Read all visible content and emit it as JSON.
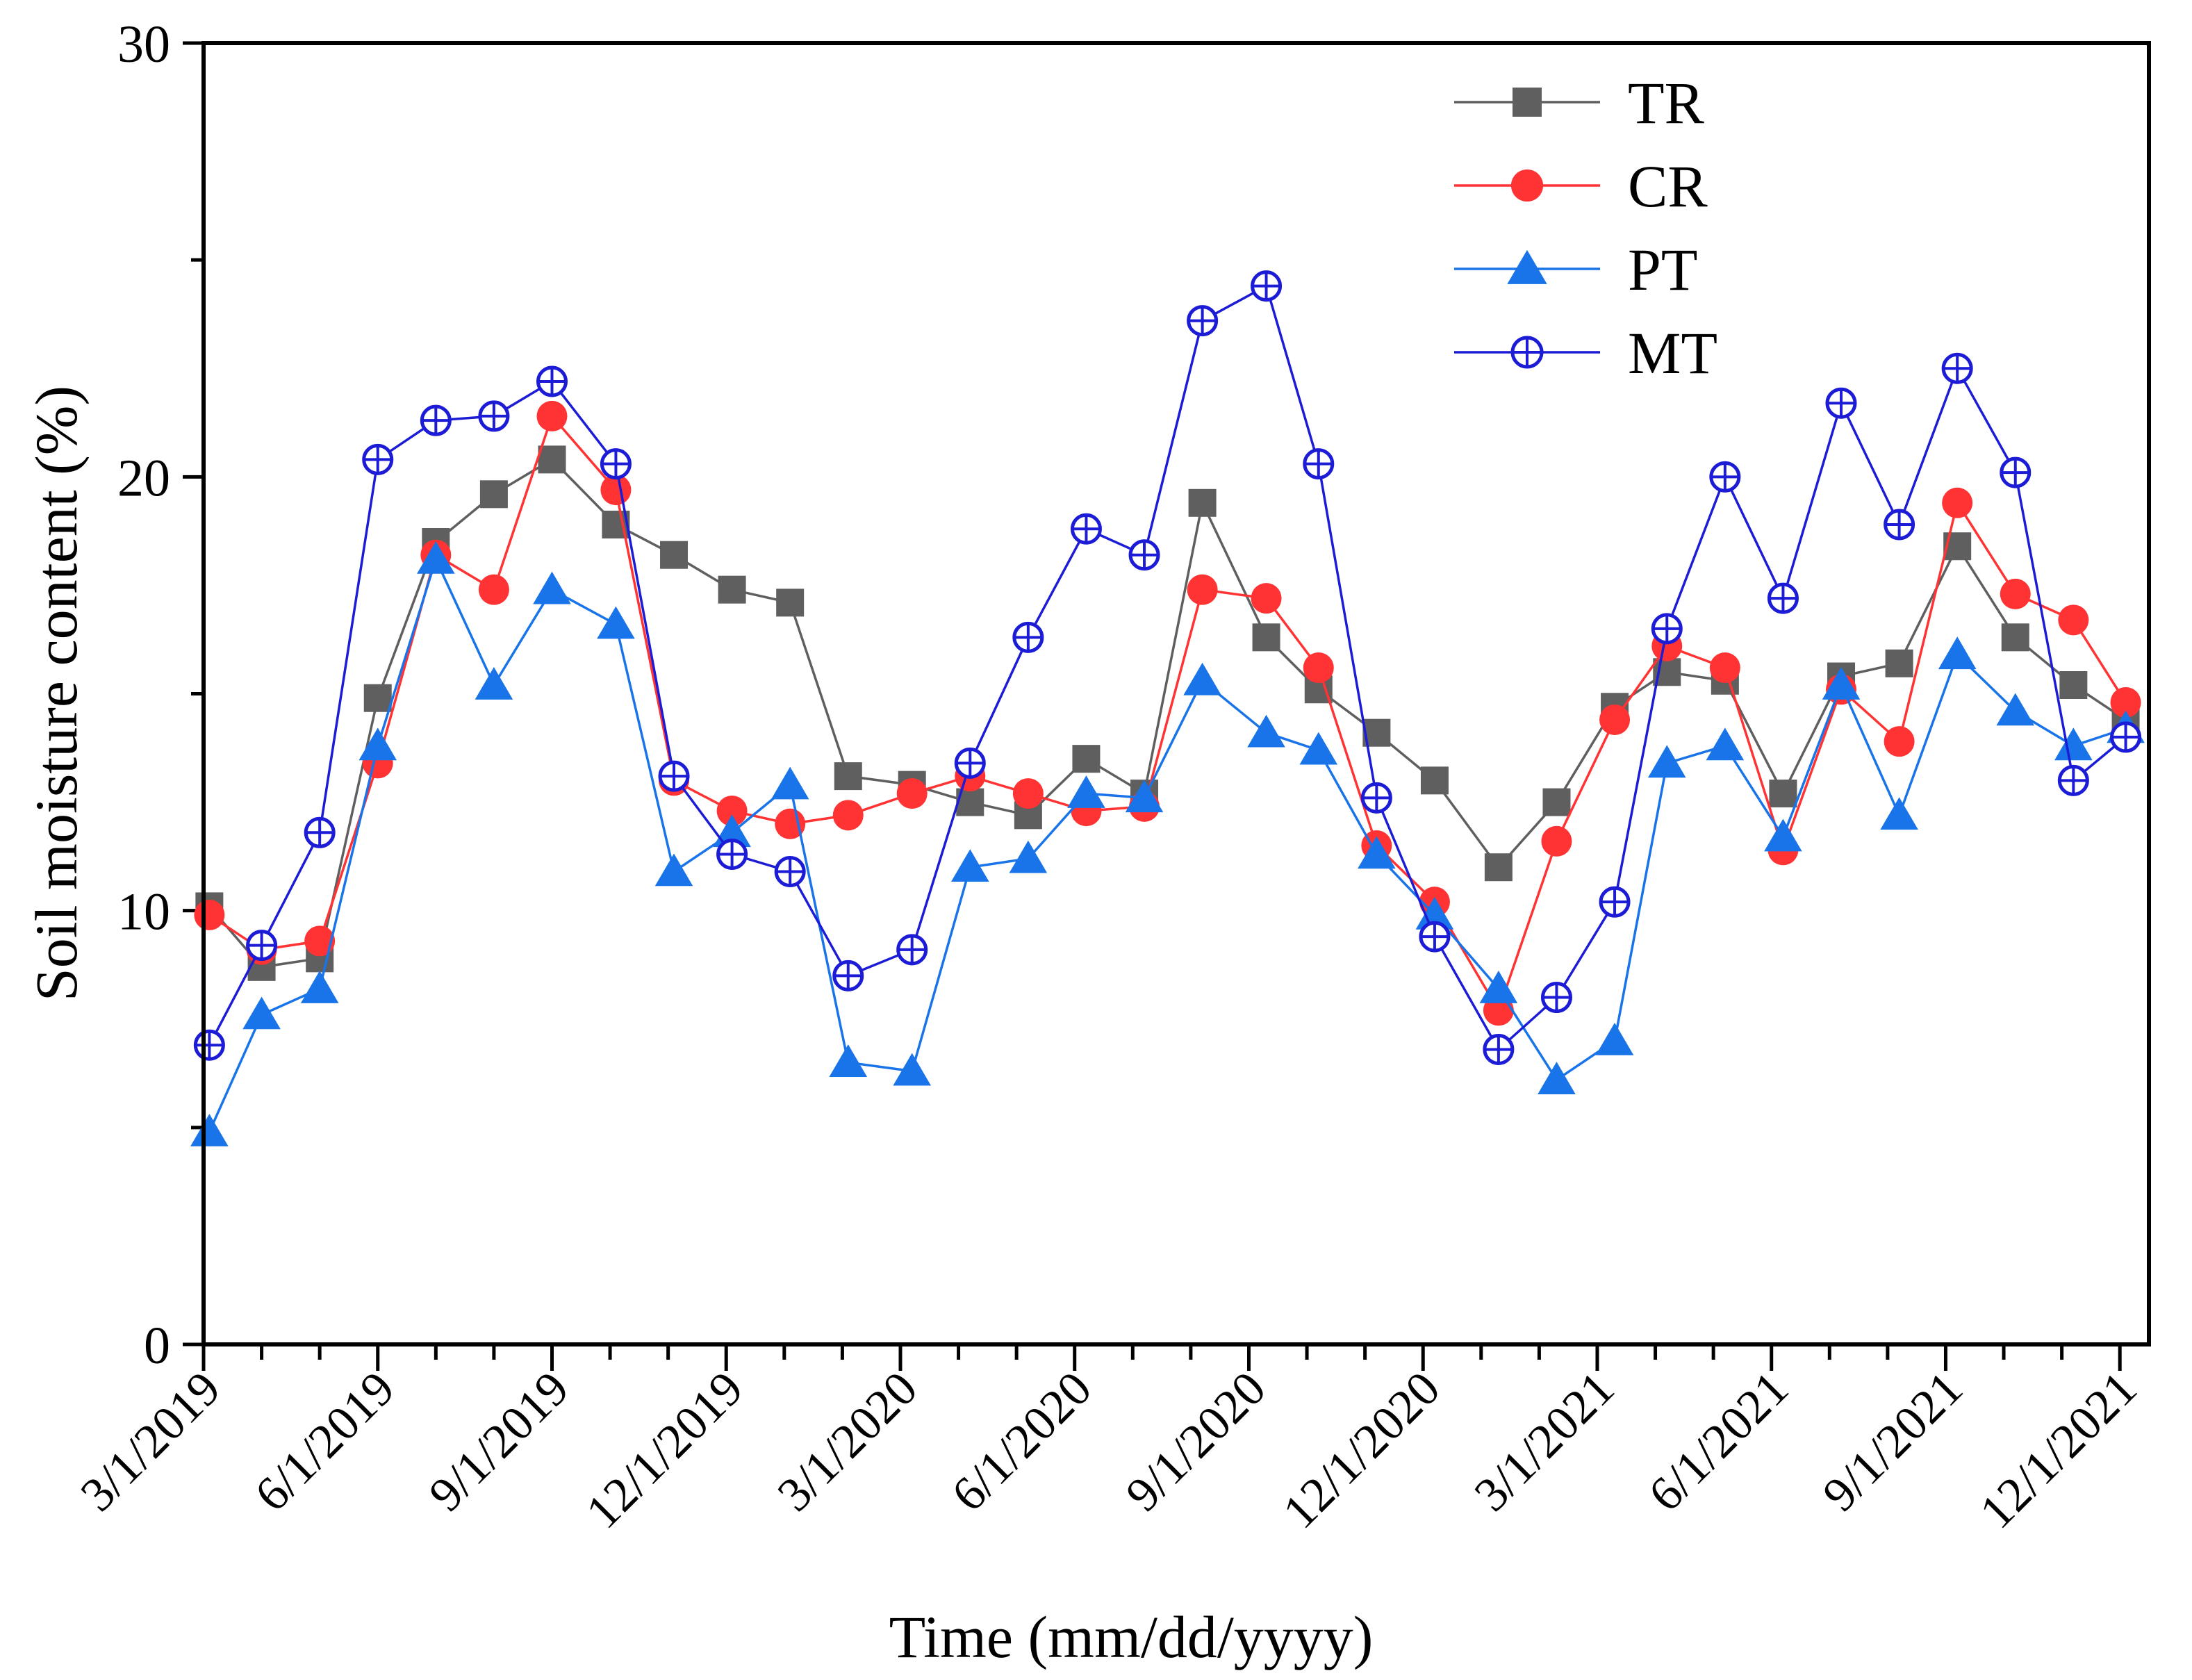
{
  "chart_data": {
    "type": "line",
    "title": "",
    "xlabel": "Time (mm/dd/yyyy)",
    "ylabel": "Soil moisture content (%)",
    "ylim": [
      0,
      30
    ],
    "yticks": [
      0,
      10,
      20,
      30
    ],
    "x_unit": "months since 3/1/2019",
    "xlim": [
      0,
      33.5
    ],
    "xtick_labels": [
      {
        "label": "3/1/2019",
        "x": 0
      },
      {
        "label": "6/1/2019",
        "x": 3
      },
      {
        "label": "9/1/2019",
        "x": 6
      },
      {
        "label": "12/1/2019",
        "x": 9
      },
      {
        "label": "3/1/2020",
        "x": 12
      },
      {
        "label": "6/1/2020",
        "x": 15
      },
      {
        "label": "9/1/2020",
        "x": 18
      },
      {
        "label": "12/1/2020",
        "x": 21
      },
      {
        "label": "3/1/2021",
        "x": 24
      },
      {
        "label": "6/1/2021",
        "x": 27
      },
      {
        "label": "9/1/2021",
        "x": 30
      },
      {
        "label": "12/1/2021",
        "x": 33
      }
    ],
    "x": [
      0.1,
      1.0,
      2.0,
      3.0,
      4.0,
      5.0,
      6.0,
      7.1,
      8.1,
      9.1,
      10.1,
      11.1,
      12.2,
      13.2,
      14.2,
      15.2,
      16.2,
      17.2,
      18.3,
      19.2,
      20.2,
      21.2,
      22.3,
      23.3,
      24.3,
      25.2,
      26.2,
      27.2,
      28.2,
      29.2,
      30.2,
      31.2,
      32.2,
      33.1
    ],
    "legend_position": "top-right",
    "series": [
      {
        "name": "TR",
        "color": "#5f5f5f",
        "marker": "square",
        "values": [
          10.1,
          8.7,
          8.9,
          14.9,
          18.5,
          19.6,
          20.4,
          18.9,
          18.2,
          17.4,
          17.1,
          13.1,
          12.9,
          12.5,
          12.2,
          13.5,
          12.7,
          19.4,
          16.3,
          15.1,
          14.1,
          13.0,
          11.0,
          12.5,
          14.7,
          15.5,
          15.3,
          12.7,
          15.4,
          15.7,
          18.4,
          16.3,
          15.2,
          14.4
        ]
      },
      {
        "name": "CR",
        "color": "#ff3333",
        "marker": "circle",
        "values": [
          9.9,
          9.1,
          9.3,
          13.4,
          18.2,
          17.4,
          21.4,
          19.7,
          13.0,
          12.3,
          12.0,
          12.2,
          12.7,
          13.1,
          12.7,
          12.3,
          12.4,
          17.4,
          17.2,
          15.6,
          11.5,
          10.2,
          7.7,
          11.6,
          14.4,
          16.1,
          15.6,
          11.4,
          15.1,
          13.9,
          19.4,
          17.3,
          16.7,
          14.8
        ]
      },
      {
        "name": "PT",
        "color": "#1874e8",
        "marker": "triangle",
        "values": [
          4.9,
          7.6,
          8.2,
          13.8,
          18.1,
          15.2,
          17.4,
          16.6,
          10.9,
          11.8,
          12.9,
          6.5,
          6.3,
          11.0,
          11.2,
          12.7,
          12.6,
          15.3,
          14.1,
          13.7,
          11.3,
          9.9,
          8.2,
          6.1,
          7.0,
          13.4,
          13.8,
          11.7,
          15.2,
          12.2,
          15.9,
          14.6,
          13.8,
          14.2
        ]
      },
      {
        "name": "MT",
        "color": "#1c1cd6",
        "marker": "circle-plus",
        "values": [
          6.9,
          9.2,
          11.8,
          20.4,
          21.3,
          21.4,
          22.2,
          20.3,
          13.1,
          11.3,
          10.9,
          8.5,
          9.1,
          13.4,
          16.3,
          18.8,
          18.2,
          23.6,
          24.4,
          20.3,
          12.6,
          9.4,
          6.8,
          8.0,
          10.2,
          16.5,
          20.0,
          17.2,
          21.7,
          18.9,
          22.5,
          20.1,
          13.0,
          14.0
        ]
      }
    ]
  }
}
